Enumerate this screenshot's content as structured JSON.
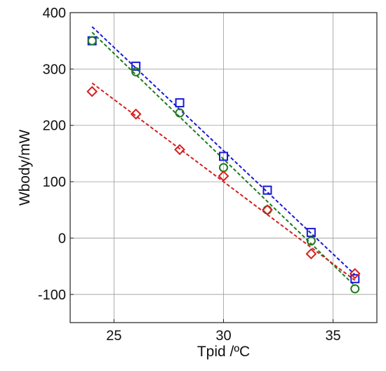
{
  "chart_data": {
    "type": "scatter",
    "title": "",
    "xlabel": "Tpid /ºC",
    "ylabel": "Wbody/mW",
    "xlim": [
      23,
      37
    ],
    "ylim": [
      -150,
      400
    ],
    "xticks": [
      25,
      30,
      35
    ],
    "yticks": [
      400,
      300,
      200,
      100,
      0,
      -100
    ],
    "grid": true,
    "legend": "none",
    "series": [
      {
        "marker": "square",
        "color": "#1a1ad6",
        "x": [
          24,
          26,
          28,
          30,
          32,
          34,
          36
        ],
        "y": [
          350,
          305,
          240,
          145,
          85,
          10,
          -72
        ],
        "fit": {
          "x": [
            24,
            36
          ],
          "y": [
            375,
            -65
          ]
        }
      },
      {
        "marker": "circle",
        "color": "#1e7a1e",
        "x": [
          24,
          26,
          28,
          30,
          32,
          34,
          36
        ],
        "y": [
          350,
          295,
          222,
          125,
          50,
          -5,
          -90
        ],
        "fit": {
          "x": [
            24,
            36
          ],
          "y": [
            365,
            -85
          ]
        }
      },
      {
        "marker": "diamond",
        "color": "#d42020",
        "x": [
          24,
          26,
          28,
          30,
          32,
          34,
          36
        ],
        "y": [
          260,
          220,
          157,
          110,
          50,
          -28,
          -63
        ],
        "fit": {
          "x": [
            24,
            36
          ],
          "y": [
            275,
            -75
          ]
        }
      }
    ]
  }
}
